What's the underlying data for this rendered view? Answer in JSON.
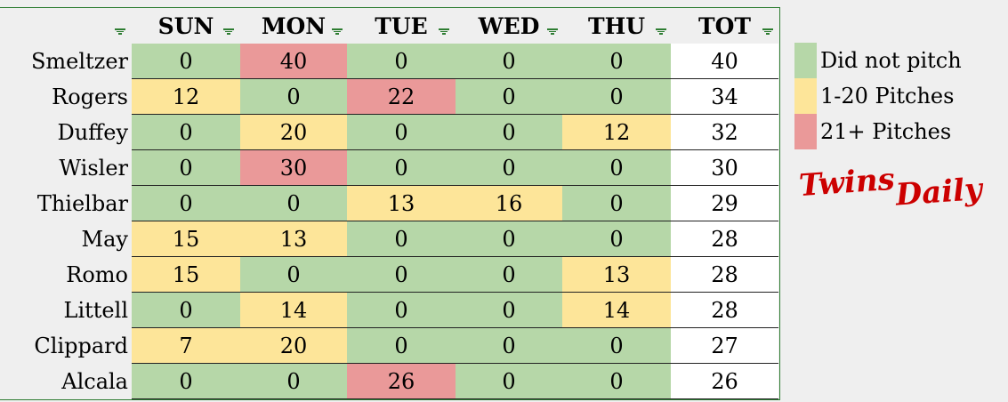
{
  "columns": [
    "SUN",
    "MON",
    "TUE",
    "WED",
    "THU",
    "TOT"
  ],
  "colors": {
    "none": "#b6d7a8",
    "low": "#fde599",
    "high": "#ea9999",
    "total": "#ffffff",
    "border": "#2e7d32"
  },
  "rows": [
    {
      "name": "Smeltzer",
      "values": [
        "0",
        "40",
        "0",
        "0",
        "0"
      ],
      "total": "40"
    },
    {
      "name": "Rogers",
      "values": [
        "12",
        "0",
        "22",
        "0",
        "0"
      ],
      "total": "34"
    },
    {
      "name": "Duffey",
      "values": [
        "0",
        "20",
        "0",
        "0",
        "12"
      ],
      "total": "32"
    },
    {
      "name": "Wisler",
      "values": [
        "0",
        "30",
        "0",
        "0",
        "0"
      ],
      "total": "30"
    },
    {
      "name": "Thielbar",
      "values": [
        "0",
        "0",
        "13",
        "16",
        "0"
      ],
      "total": "29"
    },
    {
      "name": "May",
      "values": [
        "15",
        "13",
        "0",
        "0",
        "0"
      ],
      "total": "28"
    },
    {
      "name": "Romo",
      "values": [
        "15",
        "0",
        "0",
        "0",
        "13"
      ],
      "total": "28"
    },
    {
      "name": "Littell",
      "values": [
        "0",
        "14",
        "0",
        "0",
        "14"
      ],
      "total": "28"
    },
    {
      "name": "Clippard",
      "values": [
        "7",
        "20",
        "0",
        "0",
        "0"
      ],
      "total": "27"
    },
    {
      "name": "Alcala",
      "values": [
        "0",
        "0",
        "26",
        "0",
        "0"
      ],
      "total": "26"
    }
  ],
  "legend": [
    {
      "label": "Did not pitch",
      "color": "#b6d7a8"
    },
    {
      "label": "1-20 Pitches",
      "color": "#fde599"
    },
    {
      "label": "21+ Pitches",
      "color": "#ea9999"
    }
  ],
  "logo": {
    "line1": "Twins",
    "line2": "Daily"
  }
}
